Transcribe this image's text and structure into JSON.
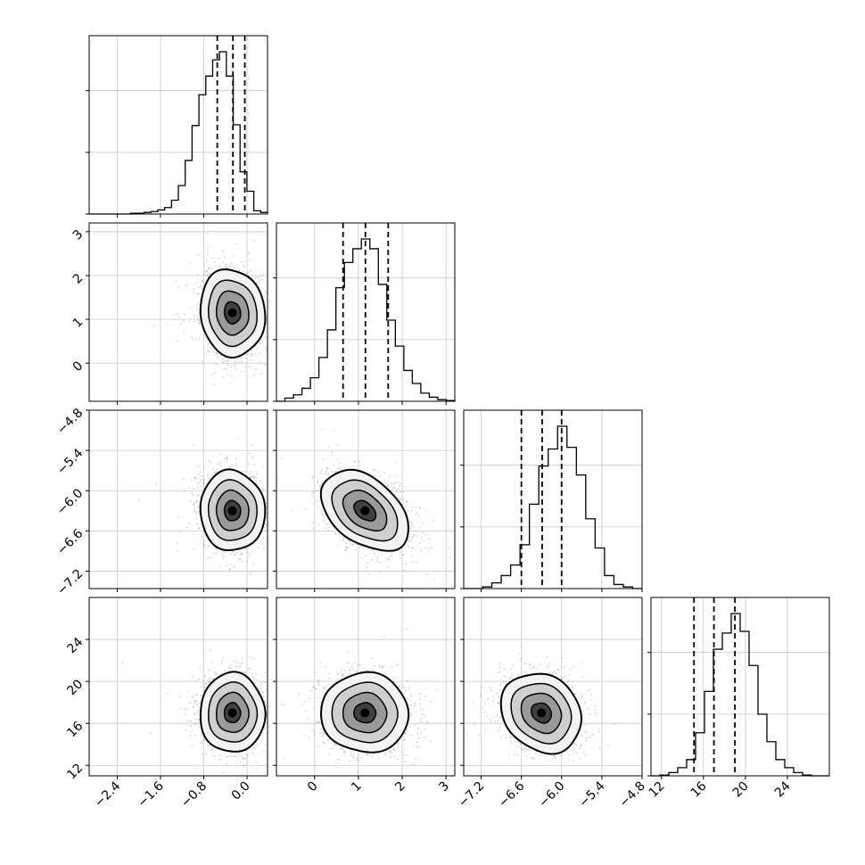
{
  "chart_data": {
    "type": "corner",
    "title": "",
    "grid": true,
    "params": [
      {
        "ticks": [
          -2.4,
          -1.6,
          -0.8,
          0.0
        ],
        "tick_labels": [
          "−2.4",
          "−1.6",
          "−0.8",
          "0.0"
        ],
        "range": [
          -2.92,
          0.38
        ]
      },
      {
        "ticks": [
          0,
          1,
          2,
          3
        ],
        "tick_labels": [
          "0",
          "1",
          "2",
          "3"
        ],
        "range": [
          -0.87,
          3.2
        ]
      },
      {
        "ticks": [
          -7.2,
          -6.6,
          -6.0,
          -5.4,
          -4.8
        ],
        "tick_labels": [
          "−7.2",
          "−6.6",
          "−6.0",
          "−5.4",
          "−4.8"
        ],
        "range": [
          -7.46,
          -4.8
        ]
      },
      {
        "ticks": [
          12,
          16,
          20,
          24
        ],
        "tick_labels": [
          "12",
          "16",
          "20",
          "24"
        ],
        "range": [
          11.0,
          28.0
        ]
      }
    ],
    "summary": [
      {
        "mean": -0.27,
        "std": 0.3,
        "quantiles": [
          -0.55,
          -0.26,
          -0.04
        ]
      },
      {
        "mean": 1.15,
        "std": 0.5,
        "quantiles": [
          0.65,
          1.16,
          1.68
        ]
      },
      {
        "mean": -6.3,
        "std": 0.3,
        "quantiles": [
          -6.6,
          -6.29,
          -6.0
        ]
      },
      {
        "mean": 17.0,
        "std": 1.9,
        "quantiles": [
          15.1,
          17.0,
          19.0
        ]
      }
    ],
    "histograms": [
      {
        "param": 0,
        "counts": [
          0,
          0,
          0,
          0,
          0,
          0,
          0.5,
          0.5,
          1,
          1.5,
          2.5,
          4,
          8.5,
          17.5,
          33,
          54.5,
          73.5,
          85,
          95,
          100,
          85,
          55,
          26,
          14,
          2,
          1
        ]
      },
      {
        "param": 1,
        "counts": [
          0,
          2,
          4,
          8,
          14.5,
          27,
          44,
          70,
          85.5,
          94,
          100,
          94,
          72,
          50,
          34,
          19,
          11,
          5,
          2.5,
          1,
          0.5
        ]
      },
      {
        "param": 2,
        "counts": [
          0,
          0,
          1,
          3.5,
          8,
          14.5,
          27,
          52,
          75.5,
          86,
          100,
          87,
          70,
          43,
          25,
          8,
          2.5,
          1,
          0
        ]
      },
      {
        "param": 3,
        "counts": [
          0,
          0.5,
          2,
          5,
          10,
          26.5,
          52,
          78,
          88,
          100,
          89,
          68,
          38,
          21,
          10,
          5,
          2,
          0.5,
          0,
          0
        ]
      }
    ],
    "correlations": {
      "0-1": -0.08,
      "0-2": -0.03,
      "0-3": 0.0,
      "1-2": -0.42,
      "1-3": -0.02,
      "2-3": -0.18
    },
    "contour_levels": [
      0.118,
      0.393,
      0.675,
      0.864
    ]
  }
}
